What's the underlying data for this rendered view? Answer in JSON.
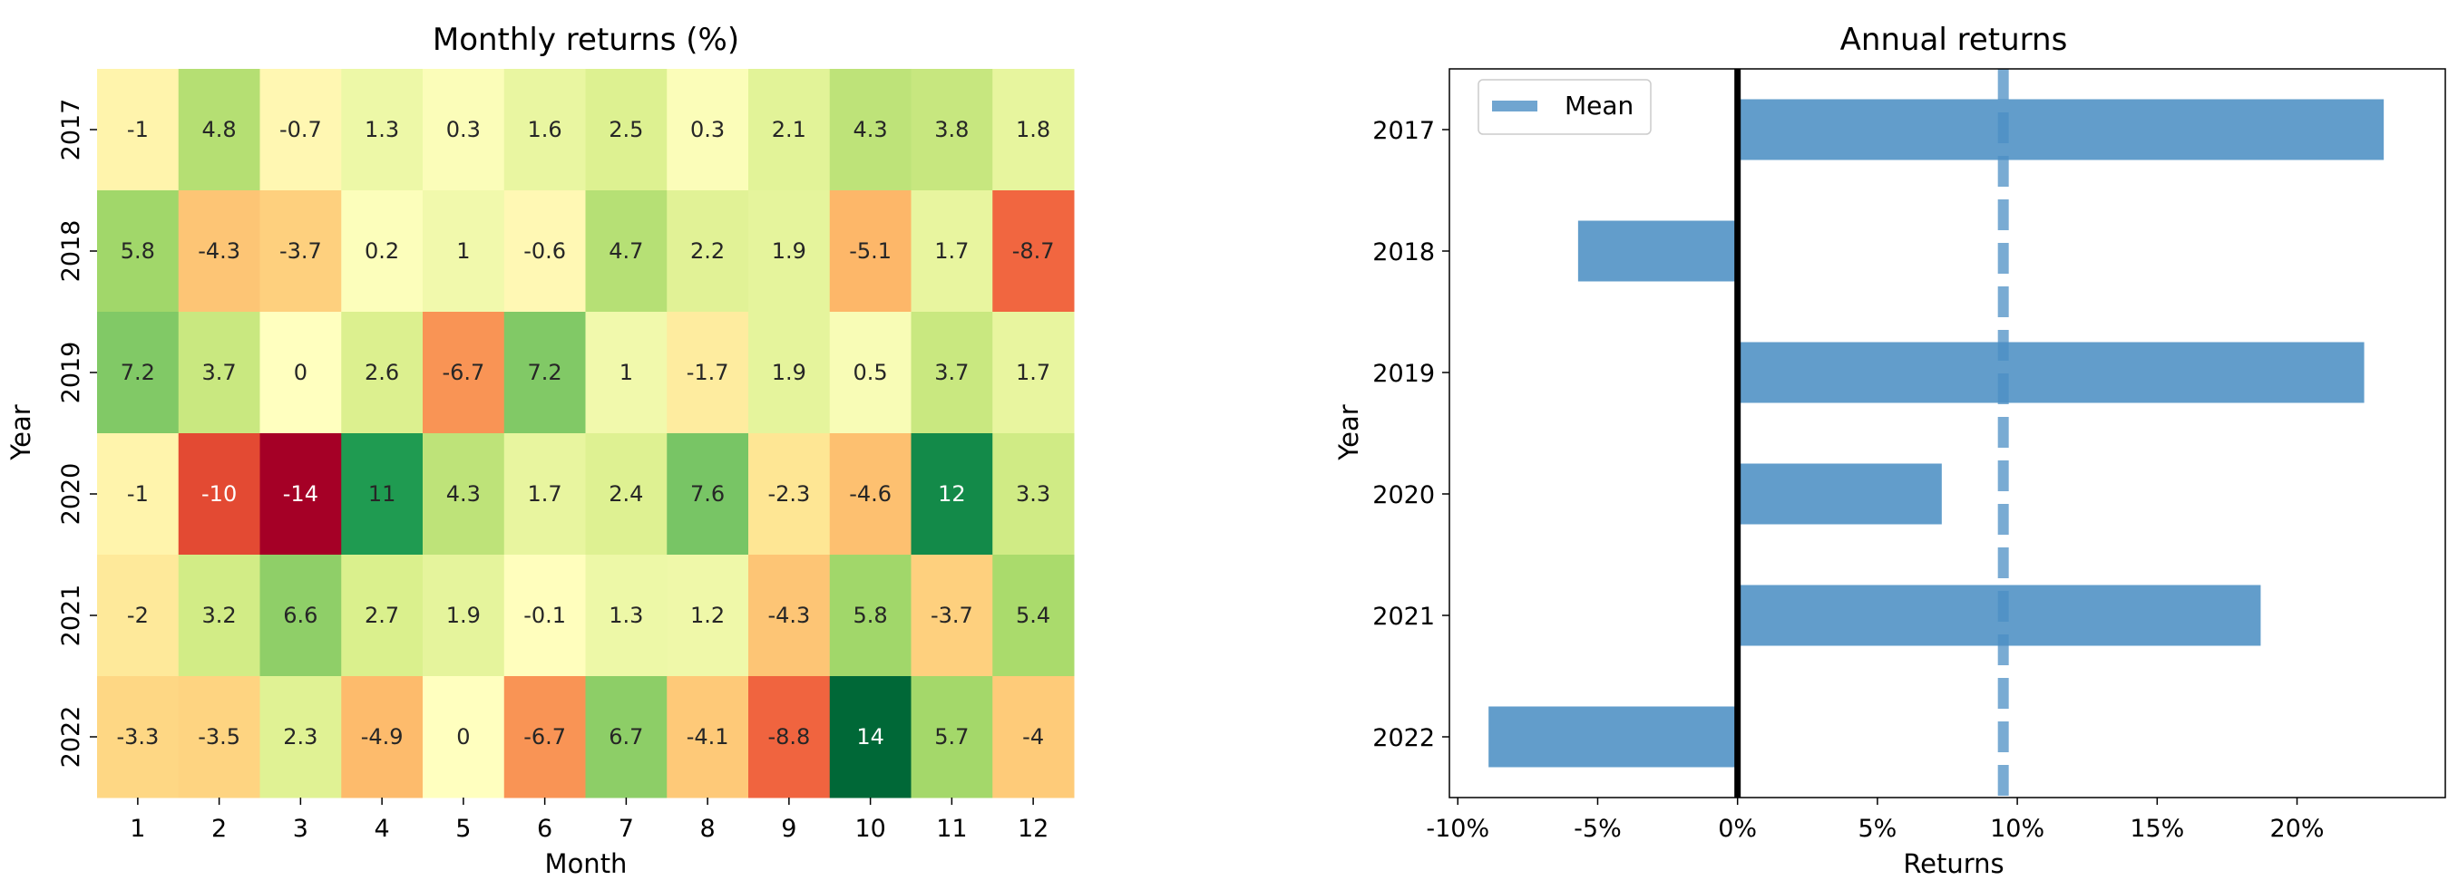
{
  "chart_data": [
    {
      "type": "heatmap",
      "title": "Monthly returns (%)",
      "xlabel": "Month",
      "ylabel": "Year",
      "x": [
        "1",
        "2",
        "3",
        "4",
        "5",
        "6",
        "7",
        "8",
        "9",
        "10",
        "11",
        "12"
      ],
      "y": [
        "2017",
        "2018",
        "2019",
        "2020",
        "2021",
        "2022"
      ],
      "values": [
        [
          -1,
          4.8,
          -0.7,
          1.3,
          0.3,
          1.6,
          2.5,
          0.3,
          2.1,
          4.3,
          3.8,
          1.8
        ],
        [
          5.8,
          -4.3,
          -3.7,
          0.2,
          1,
          -0.6,
          4.7,
          2.2,
          1.9,
          -5.1,
          1.7,
          -8.7
        ],
        [
          7.2,
          3.7,
          0,
          2.6,
          -6.7,
          7.2,
          1,
          -1.7,
          1.9,
          0.5,
          3.7,
          1.7
        ],
        [
          -1,
          -10,
          -14,
          11,
          4.3,
          1.7,
          2.4,
          7.6,
          -2.3,
          -4.6,
          12,
          3.3
        ],
        [
          -2,
          3.2,
          6.6,
          2.7,
          1.9,
          -0.1,
          1.3,
          1.2,
          -4.3,
          5.8,
          -3.7,
          5.4
        ],
        [
          -3.3,
          -3.5,
          2.3,
          -4.9,
          0,
          -6.7,
          6.7,
          -4.1,
          -8.8,
          14,
          5.7,
          -4
        ]
      ],
      "colormap": "RdYlGn",
      "vmin": -14,
      "vmax": 14
    },
    {
      "type": "bar",
      "orientation": "horizontal",
      "title": "Annual returns",
      "xlabel": "Returns",
      "ylabel": "Year",
      "categories": [
        "2017",
        "2018",
        "2019",
        "2020",
        "2021",
        "2022"
      ],
      "values": [
        23.1,
        -5.7,
        22.4,
        7.3,
        18.7,
        -8.9
      ],
      "xlim": [
        -10.3,
        25.3
      ],
      "xticks": [
        -10,
        -5,
        0,
        5,
        10,
        15,
        20
      ],
      "xtick_labels": [
        "-10%",
        "-5%",
        "0%",
        "5%",
        "10%",
        "15%",
        "20%"
      ],
      "mean": 9.5,
      "legend": [
        "Mean"
      ],
      "legend_position": "top-left",
      "bar_color": "#4c8fc4",
      "zero_line_color": "#000000"
    }
  ]
}
